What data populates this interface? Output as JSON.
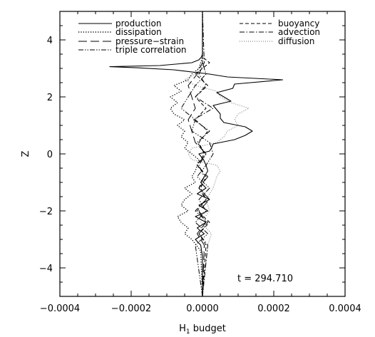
{
  "chart_data": {
    "type": "line",
    "xlabel": "H",
    "xlabel_sub": "1",
    "xlabel_rest": " budget",
    "ylabel": "Z",
    "xlim": [
      -0.0004,
      0.0004
    ],
    "ylim": [
      -5,
      5
    ],
    "x_ticks": [
      -0.0004,
      -0.0002,
      0.0,
      0.0002,
      0.0004
    ],
    "x_tick_labels": [
      "−0.0004",
      "−0.0002",
      "0.0000",
      "0.0002",
      "0.0004"
    ],
    "y_ticks": [
      -4,
      -2,
      0,
      2,
      4
    ],
    "y_tick_labels": [
      "−4",
      "−2",
      "0",
      "2",
      "4"
    ],
    "annotation": "t = 294.710",
    "grid": false,
    "legend_placement": "top",
    "series": [
      {
        "name": "production",
        "style": "solid",
        "color": "#000000",
        "z": [
          -5.0,
          -3.6,
          -3.2,
          -3.0,
          -2.8,
          -2.6,
          -2.4,
          -2.2,
          -2.0,
          -1.8,
          -1.6,
          -1.4,
          -1.2,
          -1.0,
          -0.8,
          -0.6,
          -0.4,
          -0.2,
          0.0,
          0.1,
          0.2,
          0.35,
          0.5,
          0.65,
          0.8,
          0.95,
          1.1,
          1.25,
          1.4,
          1.55,
          1.7,
          1.85,
          2.0,
          2.15,
          2.3,
          2.45,
          2.6,
          2.7,
          2.8,
          2.95,
          3.02,
          3.06,
          3.1,
          3.2,
          3.3,
          3.4,
          3.5,
          5.0
        ],
        "h": [
          0.0,
          0.0,
          -5e-06,
          -2e-05,
          5e-06,
          -1.5e-05,
          1e-05,
          -2e-05,
          1.5e-05,
          -1e-05,
          2e-05,
          -1.5e-05,
          1e-05,
          -5e-06,
          5e-06,
          1.5e-05,
          1e-05,
          3e-06,
          -1e-05,
          2e-05,
          2.5e-05,
          3e-05,
          9e-05,
          0.00012,
          0.00014,
          0.00012,
          6e-05,
          5e-05,
          5e-05,
          4e-05,
          3e-05,
          8e-05,
          6e-05,
          4e-05,
          8.5e-05,
          9e-05,
          0.000225,
          7e-05,
          2e-05,
          -8e-05,
          -0.00018,
          -0.00026,
          -0.00012,
          -3e-05,
          -1e-05,
          -3e-06,
          0.0,
          0.0
        ]
      },
      {
        "name": "dissipation",
        "style": "dotted",
        "color": "#000000",
        "z": [
          -5.0,
          -3.4,
          -3.0,
          -2.8,
          -2.6,
          -2.4,
          -2.2,
          -2.0,
          -1.8,
          -1.6,
          -1.4,
          -1.2,
          -1.0,
          -0.8,
          -0.6,
          -0.4,
          -0.2,
          0.0,
          0.2,
          0.4,
          0.6,
          0.8,
          1.0,
          1.2,
          1.4,
          1.6,
          1.8,
          2.0,
          2.2,
          2.4,
          2.6,
          2.8,
          3.0,
          3.2,
          3.4,
          5.0
        ],
        "h": [
          0.0,
          -5e-06,
          -3e-05,
          -5e-05,
          -4e-05,
          -6e-05,
          -7e-05,
          -4e-05,
          -6e-05,
          -5e-05,
          -3e-05,
          -5e-05,
          -2e-05,
          -3e-05,
          -2e-05,
          -1.5e-05,
          -1e-05,
          -3e-05,
          -5e-05,
          -4e-05,
          -6e-05,
          -5e-05,
          -7e-05,
          -5e-05,
          -8e-05,
          -9e-05,
          -7e-05,
          -9e-05,
          -6e-05,
          -8e-05,
          -4e-05,
          -3e-05,
          -1e-05,
          -5e-06,
          0.0,
          0.0
        ]
      },
      {
        "name": "pressure−strain",
        "style": "longdash",
        "color": "#000000",
        "z": [
          -5.0,
          -3.2,
          -2.8,
          -2.4,
          -2.0,
          -1.6,
          -1.2,
          -0.8,
          -0.4,
          0.0,
          0.4,
          0.8,
          1.2,
          1.6,
          2.0,
          2.4,
          2.8,
          3.2,
          5.0
        ],
        "h": [
          0.0,
          5e-06,
          -1.5e-05,
          1e-05,
          -1e-05,
          2e-05,
          -1e-05,
          1.5e-05,
          -1.5e-05,
          1e-05,
          -2e-05,
          -3e-05,
          -4e-05,
          -2e-05,
          -3e-05,
          -4e-05,
          -1.5e-05,
          0.0,
          0.0
        ]
      },
      {
        "name": "triple correlation",
        "style": "dashdotdot",
        "color": "#000000",
        "z": [
          -5.0,
          -3.2,
          -2.8,
          -2.4,
          -2.0,
          -1.6,
          -1.2,
          -0.8,
          -0.4,
          0.0,
          0.4,
          0.8,
          1.2,
          1.6,
          2.0,
          2.4,
          2.8,
          3.2,
          5.0
        ],
        "h": [
          0.0,
          -2e-05,
          1.5e-05,
          -2e-05,
          1e-05,
          -1e-05,
          2e-05,
          -1.5e-05,
          1e-05,
          3e-05,
          2e-05,
          -3e-05,
          -2e-05,
          -6e-05,
          -4e-05,
          -2e-05,
          1e-05,
          0.0,
          0.0
        ]
      },
      {
        "name": "buoyancy",
        "style": "dashed",
        "color": "#000000",
        "z": [
          -5.0,
          -3.2,
          -2.8,
          -2.4,
          -2.0,
          -1.6,
          -1.2,
          -0.8,
          -0.4,
          0.0,
          0.4,
          0.8,
          1.2,
          1.6,
          2.0,
          2.4,
          2.8,
          3.2,
          3.4,
          5.0
        ],
        "h": [
          0.0,
          1e-05,
          -1e-05,
          2e-05,
          -1.5e-05,
          1e-05,
          -5e-06,
          1e-05,
          -1.5e-05,
          5e-06,
          -1e-05,
          1.5e-05,
          -2e-05,
          1e-05,
          -2e-05,
          1.5e-05,
          -2e-05,
          2e-05,
          0.0,
          0.0
        ]
      },
      {
        "name": "advection",
        "style": "dashdot",
        "color": "#000000",
        "z": [
          -5.0,
          -3.2,
          -2.8,
          -2.4,
          -2.0,
          -1.6,
          -1.2,
          -0.8,
          -0.4,
          0.0,
          0.4,
          0.8,
          1.2,
          1.6,
          2.0,
          2.4,
          2.8,
          3.2,
          5.0
        ],
        "h": [
          0.0,
          1.5e-05,
          -1e-05,
          1.5e-05,
          -2e-05,
          1e-05,
          -1e-05,
          5e-06,
          -1e-05,
          1e-05,
          -1.5e-05,
          2e-05,
          -2.5e-05,
          3e-05,
          -2e-05,
          1e-05,
          -1e-05,
          5e-06,
          0.0
        ]
      },
      {
        "name": "diffusion",
        "style": "dotted-gray",
        "color": "#888888",
        "z": [
          -5.0,
          -3.2,
          -2.8,
          -2.4,
          -2.0,
          -1.6,
          -1.2,
          -0.8,
          -0.6,
          -0.4,
          -0.2,
          0.0,
          0.2,
          0.4,
          0.6,
          0.8,
          1.0,
          1.2,
          1.4,
          1.6,
          1.8,
          2.0,
          2.2,
          2.4,
          2.6,
          2.8,
          3.0,
          3.2,
          5.0
        ],
        "h": [
          0.0,
          1.5e-05,
          2.5e-05,
          -5e-06,
          2e-05,
          1e-05,
          3e-05,
          4e-05,
          5e-05,
          4e-05,
          -3e-05,
          -4e-05,
          -3e-05,
          4e-05,
          6e-05,
          7e-05,
          0.0001,
          9e-05,
          0.0001,
          0.00013,
          8e-05,
          5e-05,
          4e-05,
          -2e-05,
          -5e-05,
          -2e-05,
          -1e-05,
          0.0,
          0.0
        ]
      }
    ]
  }
}
